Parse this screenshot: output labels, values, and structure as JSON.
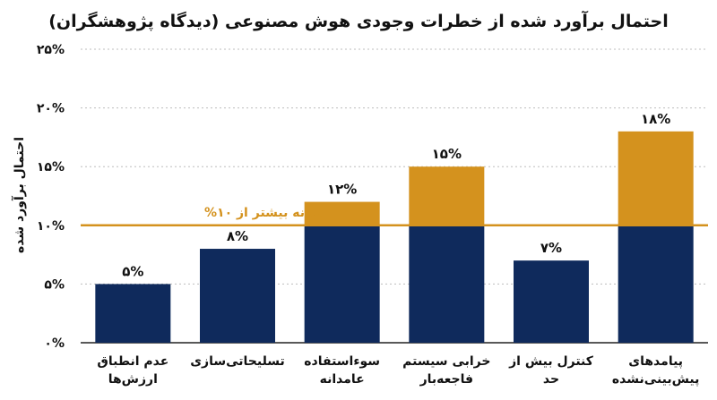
{
  "chart_data": {
    "type": "bar",
    "stacked": true,
    "title": "احتمال برآورد شده از خطرات وجودی هوش مصنوعی (دیدگاه پژوهشگران)",
    "ylabel": "احتمال برآورد شده",
    "xlabel": "",
    "ylim": [
      0,
      25
    ],
    "yticks": [
      0,
      5,
      10,
      15,
      20,
      25
    ],
    "ytick_labels": [
      "۰%",
      "۵%",
      "۱۰%",
      "۱۵%",
      "۲۰%",
      "۲۵%"
    ],
    "grid": true,
    "categories": [
      [
        "عدم انطباق",
        "ارزش‌ها"
      ],
      [
        "تسلیحاتی‌سازی"
      ],
      [
        "سوءاستفاده",
        "عامدانه"
      ],
      [
        "خرابی سیستم",
        "فاجعه‌بار"
      ],
      [
        "کنترل بیش از",
        "حد"
      ],
      [
        "پیامدهای",
        "پیش‌بینی‌نشده"
      ]
    ],
    "values": [
      5,
      8,
      12,
      15,
      7,
      18
    ],
    "value_labels": [
      "۵%",
      "۸%",
      "۱۲%",
      "۱۵%",
      "۷%",
      "۱۸%"
    ],
    "threshold": {
      "value": 10,
      "label": "آستانه بیشتر از ۱۰%"
    },
    "colors": {
      "below_threshold": "#0f2a5c",
      "above_threshold": "#d4921e",
      "threshold_line": "#d4921e",
      "grid": "#bdbdbd",
      "axis": "#222222"
    }
  }
}
